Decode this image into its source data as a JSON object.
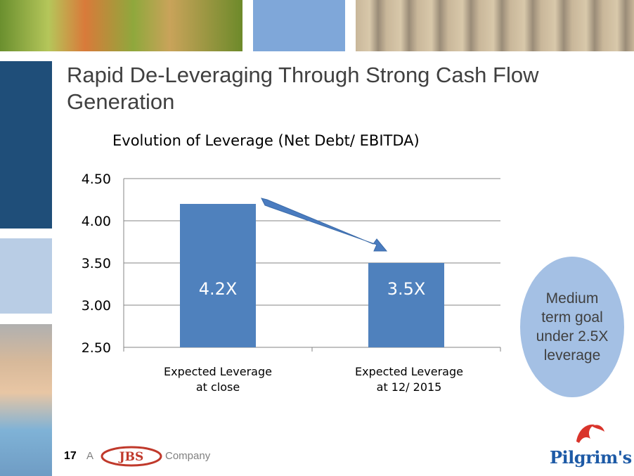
{
  "slide": {
    "title": "Rapid De-Leveraging Through Strong Cash Flow Generation",
    "page_number": "17",
    "footer_a": "A",
    "footer_company": "Company",
    "jbs_logo_text": "JBS",
    "pilgrims_logo_text": "Pilgrim's",
    "callout_text": "Medium term goal under 2.5X leverage"
  },
  "chart_data": {
    "type": "bar",
    "title": "Evolution of Leverage (Net Debt/ EBITDA)",
    "categories": [
      "Expected Leverage at close",
      "Expected Leverage at 12/ 2015"
    ],
    "category_lines": [
      [
        "Expected Leverage",
        "at close"
      ],
      [
        "Expected Leverage",
        "at 12/ 2015"
      ]
    ],
    "values": [
      4.2,
      3.5
    ],
    "data_labels": [
      "4.2X",
      "3.5X"
    ],
    "ylim": [
      2.5,
      4.5
    ],
    "yticks": [
      "2.50",
      "3.00",
      "3.50",
      "4.00",
      "4.50"
    ],
    "ytick_values": [
      2.5,
      3.0,
      3.5,
      4.0,
      4.5
    ],
    "grid": true,
    "annotation": "down-arrow between bars",
    "colors": {
      "bar": "#4f81bd",
      "grid": "#868686",
      "label": "#ffffff"
    }
  }
}
